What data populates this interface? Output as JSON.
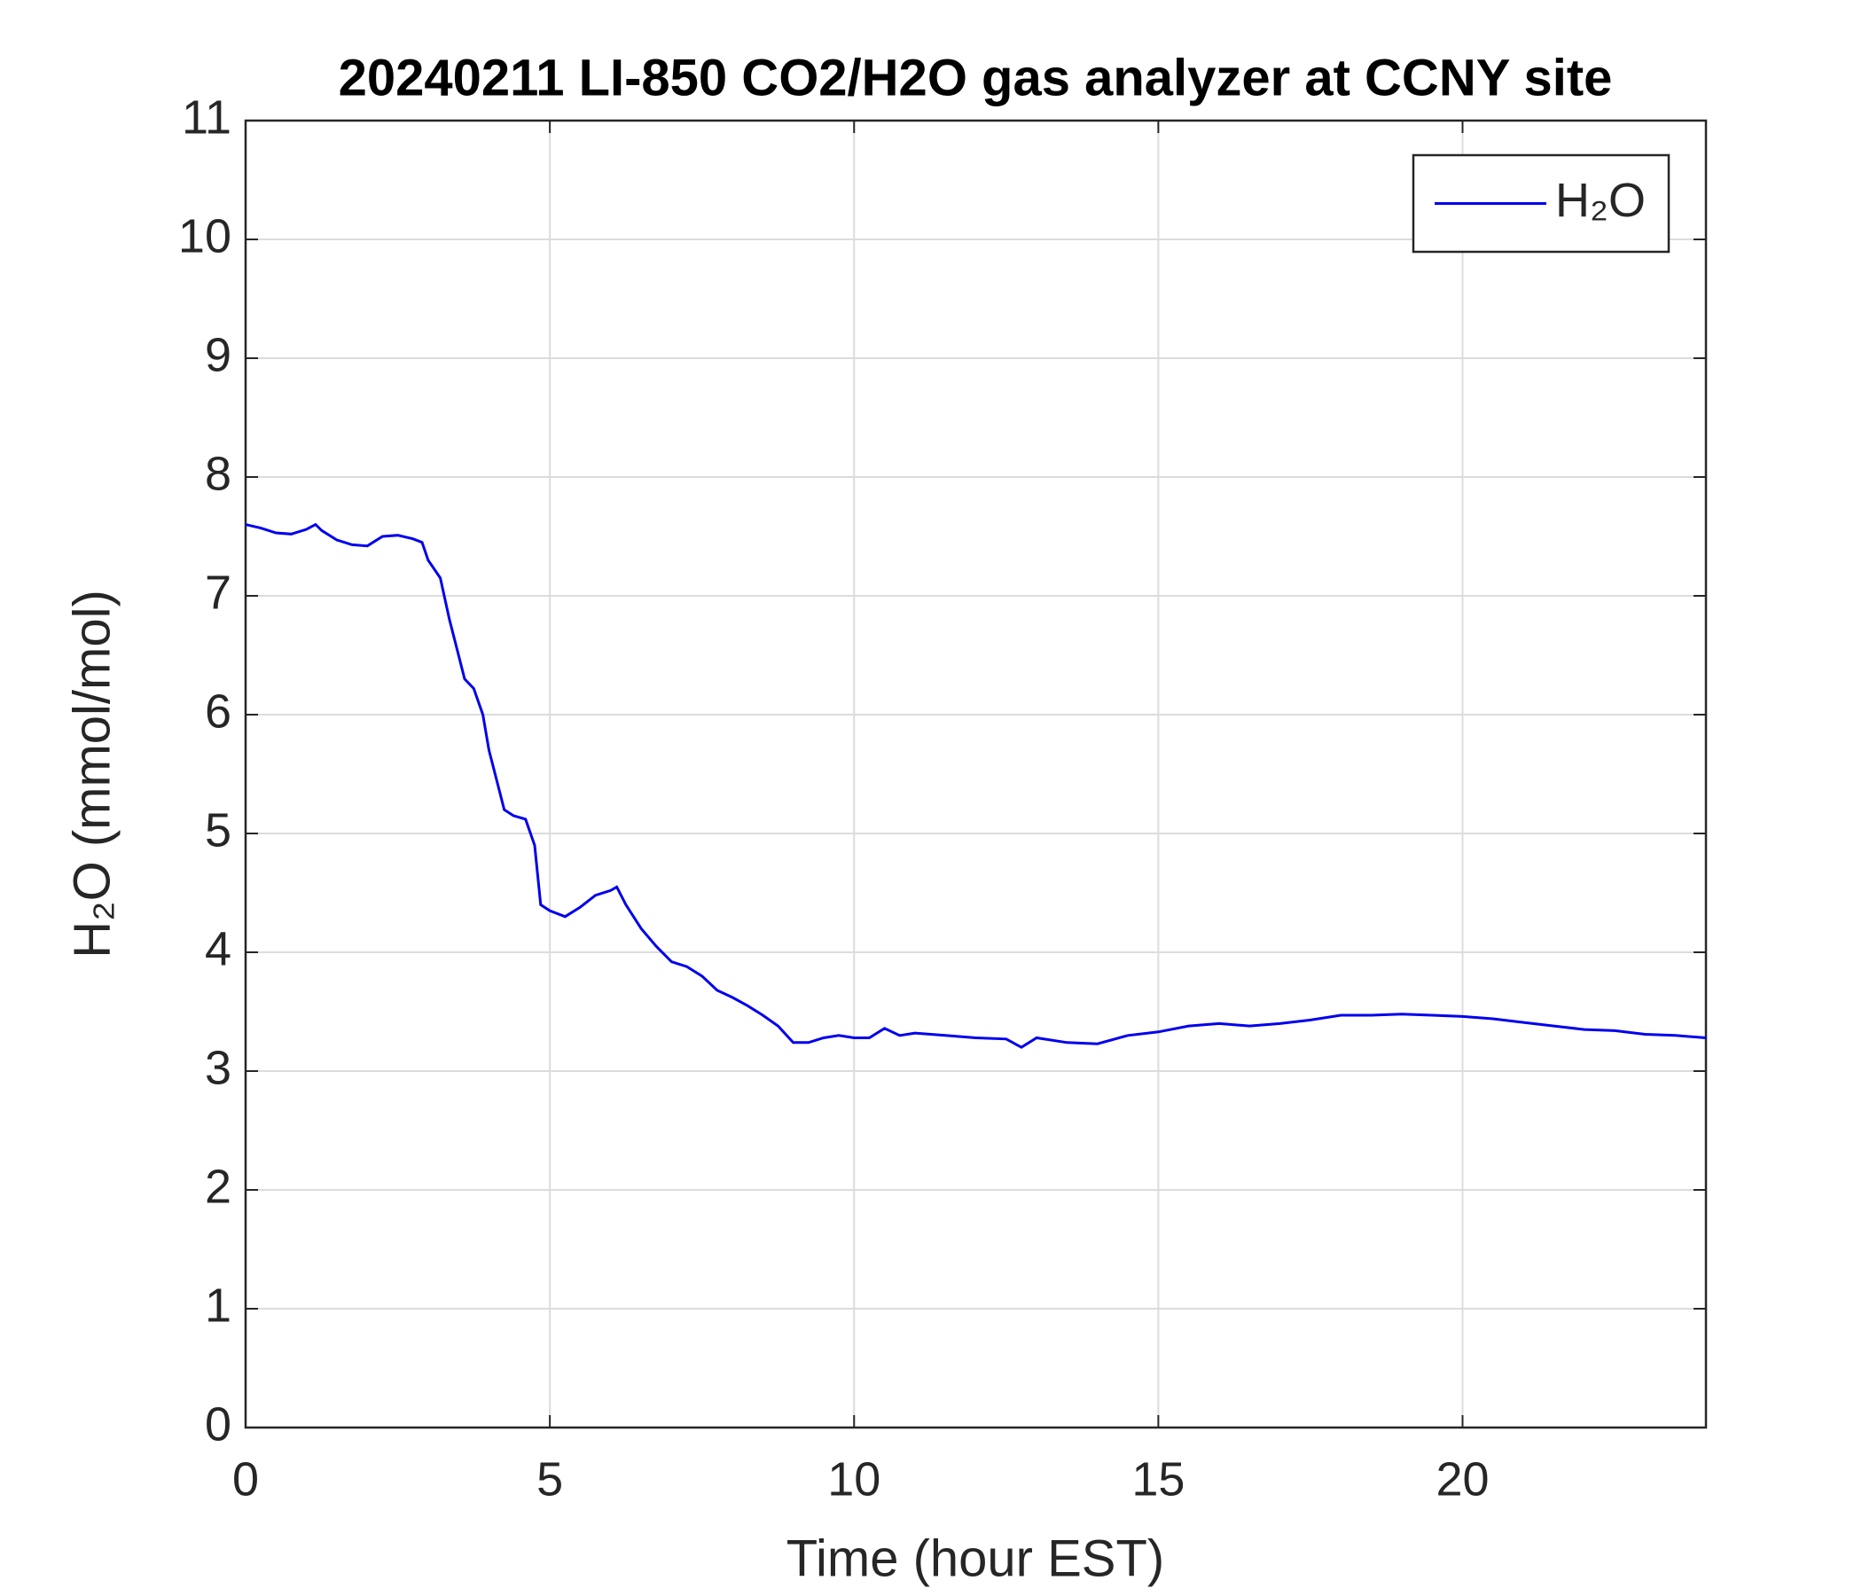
{
  "chart_data": {
    "type": "line",
    "title": "20240211 LI-850 CO2/H2O gas analyzer at CCNY site",
    "x_label": "Time (hour EST)",
    "y_label": "H₂O (mmol/mol)",
    "x": [
      0,
      0.25,
      0.5,
      0.75,
      1.0,
      1.15,
      1.25,
      1.5,
      1.75,
      2.0,
      2.25,
      2.5,
      2.75,
      2.9,
      3.0,
      3.2,
      3.35,
      3.5,
      3.6,
      3.75,
      3.9,
      4.0,
      4.1,
      4.25,
      4.4,
      4.6,
      4.75,
      4.85,
      5.0,
      5.25,
      5.5,
      5.75,
      6.0,
      6.1,
      6.25,
      6.5,
      6.75,
      7.0,
      7.25,
      7.5,
      7.75,
      8.0,
      8.25,
      8.5,
      8.75,
      9.0,
      9.25,
      9.5,
      9.75,
      10,
      10.25,
      10.5,
      10.75,
      11,
      11.5,
      12,
      12.5,
      12.75,
      13,
      13.5,
      14,
      14.5,
      15,
      15.5,
      16,
      16.5,
      17,
      17.5,
      18,
      18.5,
      19,
      19.5,
      20,
      20.5,
      21,
      21.5,
      22,
      22.5,
      23,
      23.5,
      24
    ],
    "series": [
      {
        "name": "H₂O",
        "color": "#0000ee",
        "values": [
          7.6,
          7.57,
          7.53,
          7.52,
          7.56,
          7.6,
          7.55,
          7.47,
          7.43,
          7.42,
          7.5,
          7.51,
          7.48,
          7.45,
          7.3,
          7.15,
          6.8,
          6.5,
          6.3,
          6.22,
          6.0,
          5.7,
          5.5,
          5.2,
          5.15,
          5.12,
          4.9,
          4.4,
          4.35,
          4.3,
          4.38,
          4.48,
          4.52,
          4.55,
          4.4,
          4.2,
          4.05,
          3.92,
          3.88,
          3.8,
          3.68,
          3.62,
          3.55,
          3.47,
          3.38,
          3.24,
          3.24,
          3.28,
          3.3,
          3.28,
          3.28,
          3.36,
          3.3,
          3.32,
          3.3,
          3.28,
          3.27,
          3.2,
          3.28,
          3.24,
          3.23,
          3.3,
          3.33,
          3.38,
          3.4,
          3.38,
          3.4,
          3.43,
          3.47,
          3.47,
          3.48,
          3.47,
          3.46,
          3.44,
          3.41,
          3.38,
          3.35,
          3.34,
          3.31,
          3.3,
          3.28
        ]
      }
    ],
    "xlim": [
      0,
      24
    ],
    "xticks": [
      0,
      5,
      10,
      15,
      20
    ],
    "ylim": [
      0,
      11
    ],
    "yticks": [
      0,
      1,
      2,
      3,
      4,
      5,
      6,
      7,
      8,
      9,
      10,
      11
    ],
    "grid": true,
    "legend": "upper right"
  }
}
